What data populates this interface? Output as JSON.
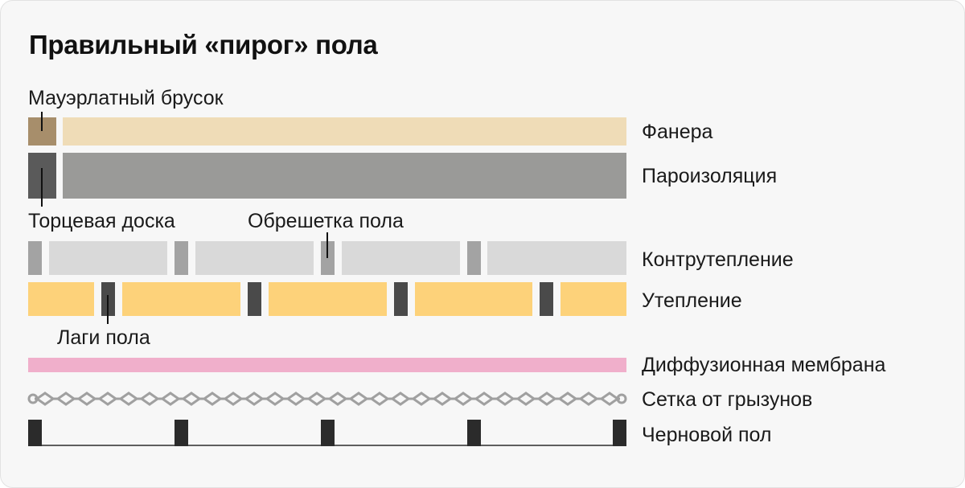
{
  "title": "Правильный «пирог» пола",
  "layers": {
    "plywood": "Фанера",
    "vapor_barrier": "Пароизоляция",
    "counter_insulation": "Контрутепление",
    "insulation": "Утепление",
    "diffusion_membrane": "Диффузионная мембрана",
    "rodent_mesh": "Сетка от грызунов",
    "subfloor": "Черновой пол"
  },
  "callouts": {
    "mauerlat": "Мауэрлатный брусок",
    "end_board": "Торцевая доска",
    "floor_lathing": "Обрешетка пола",
    "floor_joists": "Лаги пола"
  },
  "colors": {
    "card_bg": "#f7f7f7",
    "plywood": "#efdcb7",
    "mauerlat": "#a78e6b",
    "vapor_barrier": "#9a9a98",
    "end_board": "#5a5a5a",
    "counter_insulation": "#d9d9d9",
    "lathing": "#a3a3a3",
    "insulation": "#fdd27a",
    "joist": "#4a4a4a",
    "membrane": "#f0afcb",
    "mesh": "#a0a0a0",
    "subfloor_post": "#2b2b2b"
  }
}
